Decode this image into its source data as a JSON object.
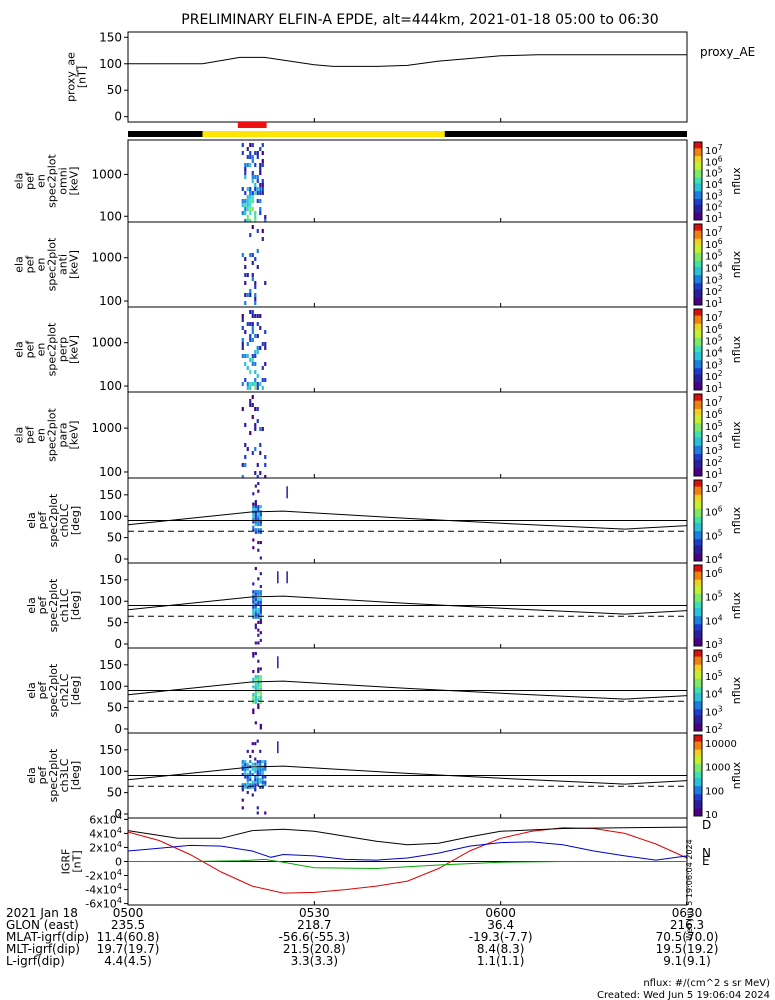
{
  "title": "PRELIMINARY ELFIN-A EPDE, alt=444km, 2021-01-18 05:00 to 06:30",
  "chart_data": [
    {
      "id": "proxy_ae",
      "type": "line",
      "ylabel": "proxy_ae\n[nT]",
      "legend": "proxy_AE",
      "yticks": [
        "150",
        "100",
        "50",
        "0"
      ],
      "ylim": [
        -10,
        160
      ],
      "x_minutes": [
        0,
        12,
        18,
        22,
        30,
        33,
        40,
        45,
        50,
        55,
        60,
        66,
        72,
        80,
        90
      ],
      "values": [
        100,
        100,
        112,
        112,
        98,
        95,
        95,
        97,
        105,
        110,
        115,
        117,
        117,
        117,
        117
      ]
    },
    {
      "id": "status_bar",
      "type": "bar",
      "segments": [
        {
          "start": 0,
          "end": 12,
          "color": "#000000"
        },
        {
          "start": 12,
          "end": 51,
          "color": "#ffe600"
        },
        {
          "start": 51,
          "end": 90,
          "color": "#000000"
        }
      ],
      "science_zone": {
        "start": 18,
        "end": 22,
        "color": "#ee1111"
      }
    },
    {
      "id": "spec_omni",
      "type": "heatmap",
      "ylabel": "ela\npef\nen\nspec2plot\nomni\n[keV]",
      "yticks": [
        "1000",
        "100"
      ],
      "ylim_kev": [
        60,
        8000
      ],
      "colorbar": {
        "label": "nflux",
        "ticks": [
          "10^7",
          "10^6",
          "10^5",
          "10^4",
          "10^3",
          "10^2",
          "10^1"
        ]
      },
      "activity_window_minutes": [
        18.3,
        22.2
      ],
      "peak_minutes": 19.8
    },
    {
      "id": "spec_anti",
      "type": "heatmap",
      "ylabel": "ela\npef\nen\nspec2plot\nanti\n[keV]",
      "yticks": [
        "1000",
        "100"
      ],
      "colorbar": {
        "label": "nflux",
        "ticks": [
          "10^7",
          "10^6",
          "10^5",
          "10^4",
          "10^3",
          "10^2",
          "10^1"
        ]
      },
      "activity_window_minutes": [
        18.3,
        22.2
      ]
    },
    {
      "id": "spec_perp",
      "type": "heatmap",
      "ylabel": "ela\npef\nen\nspec2plot\nperp\n[keV]",
      "yticks": [
        "1000",
        "100"
      ],
      "colorbar": {
        "label": "nflux",
        "ticks": [
          "10^7",
          "10^6",
          "10^5",
          "10^4",
          "10^3",
          "10^2",
          "10^1"
        ]
      },
      "activity_window_minutes": [
        18.3,
        22.2
      ]
    },
    {
      "id": "spec_para",
      "type": "heatmap",
      "ylabel": "ela\npef\nen\nspec2plot\npara\n[keV]",
      "yticks": [
        "1000",
        "100"
      ],
      "colorbar": {
        "label": "nflux",
        "ticks": [
          "10^7",
          "10^6",
          "10^5",
          "10^4",
          "10^3",
          "10^2",
          "10^1"
        ]
      },
      "activity_window_minutes": [
        18.3,
        22.2
      ]
    },
    {
      "id": "pa_ch0",
      "type": "heatmap",
      "ylabel": "ela\npef\nspec2plot\nch0LC\n[deg]",
      "yticks": [
        "150",
        "100",
        "50",
        "0"
      ],
      "colorbar": {
        "label": "nflux",
        "ticks": [
          "10^7",
          "10^6",
          "10^5",
          "10^4"
        ]
      },
      "losscone_x": [
        0,
        20,
        25,
        45,
        65,
        80,
        90
      ],
      "losscone_y": [
        80,
        110,
        112,
        95,
        80,
        70,
        78
      ]
    },
    {
      "id": "pa_ch1",
      "type": "heatmap",
      "ylabel": "ela\npef\nspec2plot\nch1LC\n[deg]",
      "yticks": [
        "150",
        "100",
        "50",
        "0"
      ],
      "colorbar": {
        "label": "nflux",
        "ticks": [
          "10^6",
          "10^5",
          "10^4",
          "10^3"
        ]
      },
      "losscone_x": [
        0,
        20,
        25,
        45,
        65,
        80,
        90
      ],
      "losscone_y": [
        80,
        110,
        112,
        95,
        80,
        70,
        78
      ]
    },
    {
      "id": "pa_ch2",
      "type": "heatmap",
      "ylabel": "ela\npef\nspec2plot\nch2LC\n[deg]",
      "yticks": [
        "150",
        "100",
        "50",
        "0"
      ],
      "colorbar": {
        "label": "nflux",
        "ticks": [
          "10^6",
          "10^5",
          "10^4",
          "10^3",
          "10^2"
        ]
      },
      "losscone_x": [
        0,
        20,
        25,
        45,
        65,
        80,
        90
      ],
      "losscone_y": [
        80,
        110,
        112,
        95,
        80,
        70,
        78
      ]
    },
    {
      "id": "pa_ch3",
      "type": "heatmap",
      "ylabel": "ela\npef\nspec2plot\nch3LC\n[deg]",
      "yticks": [
        "150",
        "100",
        "50",
        "0"
      ],
      "colorbar": {
        "label": "nflux",
        "ticks": [
          "10000",
          "1000",
          "100",
          "10"
        ]
      },
      "losscone_x": [
        0,
        20,
        25,
        45,
        65,
        80,
        90
      ],
      "losscone_y": [
        80,
        110,
        112,
        95,
        80,
        70,
        78
      ]
    },
    {
      "id": "igrf",
      "type": "line",
      "ylabel": "IGRF\n[nT]",
      "yticks": [
        "6x10^4",
        "4x10^4",
        "2x10^4",
        "0",
        "-2x10^4",
        "-4x10^4",
        "-6x10^4"
      ],
      "ylim": [
        -62000,
        62000
      ],
      "legend": [
        "D",
        "N",
        "E"
      ],
      "series": [
        {
          "name": "D",
          "color": "#dd0000",
          "x": [
            0,
            5,
            10,
            15,
            20,
            25,
            30,
            35,
            40,
            45,
            50,
            55,
            60,
            65,
            70,
            75,
            80,
            85,
            90
          ],
          "values": [
            42000,
            30000,
            10000,
            -15000,
            -35000,
            -45000,
            -44000,
            -40000,
            -35000,
            -28000,
            -10000,
            15000,
            33000,
            43000,
            48000,
            47000,
            40000,
            25000,
            5000
          ]
        },
        {
          "name": "N",
          "color": "#0000cc",
          "x": [
            0,
            5,
            10,
            15,
            20,
            23,
            25,
            30,
            35,
            40,
            45,
            50,
            55,
            60,
            65,
            70,
            75,
            80,
            85,
            90
          ],
          "values": [
            15000,
            19000,
            23000,
            22000,
            15000,
            6000,
            10000,
            8000,
            3000,
            2000,
            5000,
            12000,
            22000,
            27000,
            28000,
            24000,
            15000,
            8000,
            2000,
            8000
          ]
        },
        {
          "name": "E",
          "color": "#00aa00",
          "x": [
            0,
            10,
            18,
            22,
            25,
            30,
            40,
            50,
            60,
            70,
            80,
            90
          ],
          "values": [
            0,
            0,
            1000,
            3000,
            -1000,
            -9000,
            -10000,
            -5000,
            -1000,
            0,
            0,
            0
          ]
        },
        {
          "name": "total",
          "color": "#000000",
          "x": [
            0,
            8,
            15,
            20,
            25,
            30,
            35,
            40,
            45,
            50,
            55,
            60,
            70,
            80,
            90
          ],
          "values": [
            44000,
            33000,
            33000,
            44000,
            46000,
            43000,
            36000,
            29000,
            24000,
            26000,
            35000,
            43000,
            47000,
            48000,
            49000
          ]
        }
      ]
    }
  ],
  "x_axis": {
    "labels": [
      "2021 Jan 18",
      "GLON (east)",
      "MLAT-igrf(dip)",
      "MLT-igrf(dip)",
      "L-igrf(dip)"
    ],
    "ticks": [
      {
        "minute": 0,
        "cols": [
          "0500",
          "235.5",
          "11.4(60.8)",
          "19.7(19.7)",
          "4.4(4.5)"
        ]
      },
      {
        "minute": 30,
        "cols": [
          "0530",
          "218.7",
          "-56.6(-55.3)",
          "21.5(20.8)",
          "3.3(3.3)"
        ]
      },
      {
        "minute": 60,
        "cols": [
          "0600",
          "36.4",
          "-19.3(-7.7)",
          "8.4(8.3)",
          "1.1(1.1)"
        ]
      },
      {
        "minute": 90,
        "cols": [
          "0630",
          "216.3",
          "70.5(70.0)",
          "19.5(19.2)",
          "9.1(9.1)"
        ]
      }
    ]
  },
  "footer": {
    "units": "nflux: #/(cm^2 s sr MeV)",
    "created": "Created: Wed Jun  5 19:06:04 2024",
    "sidestamp": "Wed Jun  5 19:06:04 2024"
  }
}
